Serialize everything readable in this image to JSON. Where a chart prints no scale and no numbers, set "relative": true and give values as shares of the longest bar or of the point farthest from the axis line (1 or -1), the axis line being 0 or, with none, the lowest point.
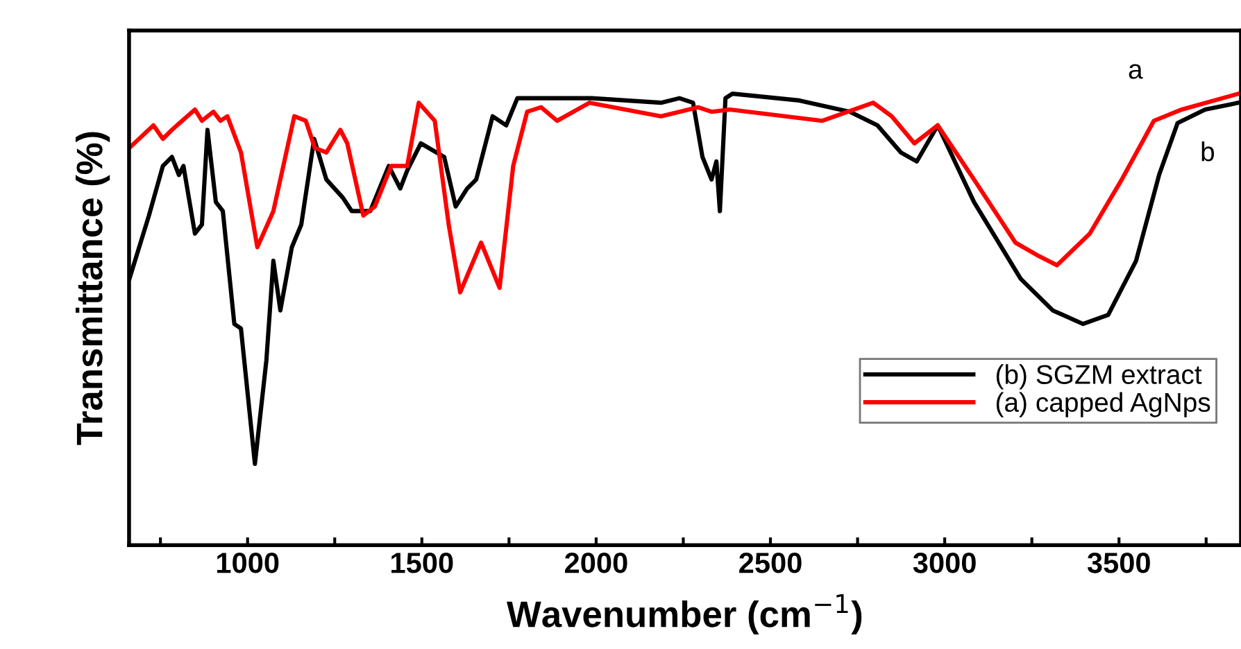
{
  "chart_data": {
    "type": "line",
    "relative": true,
    "xlabel": "Wavenumber (cm$^{−1}$)",
    "ylabel": "Transmittance (%)",
    "xlim": [
      660,
      3850
    ],
    "xticks": [
      {
        "value": 750,
        "label": null
      },
      1000,
      {
        "value": 1250,
        "label": null
      },
      1500,
      {
        "value": 1750,
        "label": null
      },
      2000,
      {
        "value": 2250,
        "label": null
      },
      2500,
      {
        "value": 2750,
        "label": null
      },
      3000,
      {
        "value": 3250,
        "label": null
      },
      3500,
      {
        "value": 3750,
        "label": null
      }
    ],
    "legend": "right",
    "grid": false,
    "marker": "none",
    "line_style": "solid",
    "annotations": [
      "a",
      "b"
    ],
    "series": [
      {
        "name": "(b) SGZM extract",
        "color": "#000000",
        "x": [
          661,
          677,
          717,
          757,
          783,
          803,
          816,
          849,
          869,
          885,
          909,
          929,
          962,
          981,
          1021,
          1054,
          1074,
          1094,
          1127,
          1154,
          1191,
          1226,
          1273,
          1299,
          1352,
          1405,
          1438,
          1458,
          1497,
          1564,
          1597,
          1630,
          1656,
          1703,
          1742,
          1774,
          1802,
          1987,
          2186,
          2239,
          2278,
          2305,
          2331,
          2345,
          2355,
          2371,
          2391,
          2583,
          2728,
          2807,
          2874,
          2920,
          2980,
          3084,
          3218,
          3310,
          3397,
          3469,
          3549,
          3615,
          3668,
          3747,
          3843
        ],
        "values": [
          0.59,
          0.63,
          0.73,
          0.84,
          0.86,
          0.82,
          0.84,
          0.69,
          0.71,
          0.92,
          0.76,
          0.74,
          0.49,
          0.48,
          0.18,
          0.41,
          0.63,
          0.52,
          0.66,
          0.71,
          0.9,
          0.81,
          0.77,
          0.74,
          0.74,
          0.84,
          0.79,
          0.83,
          0.89,
          0.86,
          0.75,
          0.79,
          0.81,
          0.95,
          0.93,
          0.99,
          0.99,
          0.99,
          0.98,
          0.99,
          0.98,
          0.86,
          0.81,
          0.85,
          0.74,
          0.99,
          1.0,
          0.985,
          0.96,
          0.93,
          0.87,
          0.85,
          0.93,
          0.76,
          0.59,
          0.52,
          0.49,
          0.51,
          0.63,
          0.82,
          0.935,
          0.965,
          0.98
        ]
      },
      {
        "name": "(a) capped AgNps",
        "color": "#ff0000",
        "x": [
          661,
          730,
          757,
          783,
          849,
          869,
          902,
          922,
          942,
          981,
          1028,
          1074,
          1134,
          1167,
          1193,
          1226,
          1266,
          1286,
          1332,
          1365,
          1412,
          1458,
          1491,
          1537,
          1577,
          1610,
          1670,
          1723,
          1762,
          1802,
          1842,
          1888,
          1981,
          2186,
          2292,
          2331,
          2384,
          2649,
          2795,
          2848,
          2913,
          2980,
          3084,
          3203,
          3271,
          3322,
          3416,
          3508,
          3600,
          3680,
          3843
        ],
        "values": [
          0.88,
          0.93,
          0.9,
          0.92,
          0.965,
          0.94,
          0.96,
          0.94,
          0.95,
          0.87,
          0.66,
          0.74,
          0.95,
          0.94,
          0.88,
          0.87,
          0.92,
          0.89,
          0.73,
          0.75,
          0.84,
          0.84,
          0.98,
          0.94,
          0.71,
          0.56,
          0.67,
          0.57,
          0.84,
          0.96,
          0.97,
          0.94,
          0.98,
          0.95,
          0.97,
          0.96,
          0.965,
          0.94,
          0.98,
          0.95,
          0.89,
          0.93,
          0.81,
          0.67,
          0.64,
          0.62,
          0.69,
          0.81,
          0.94,
          0.965,
          1.0
        ]
      }
    ]
  }
}
